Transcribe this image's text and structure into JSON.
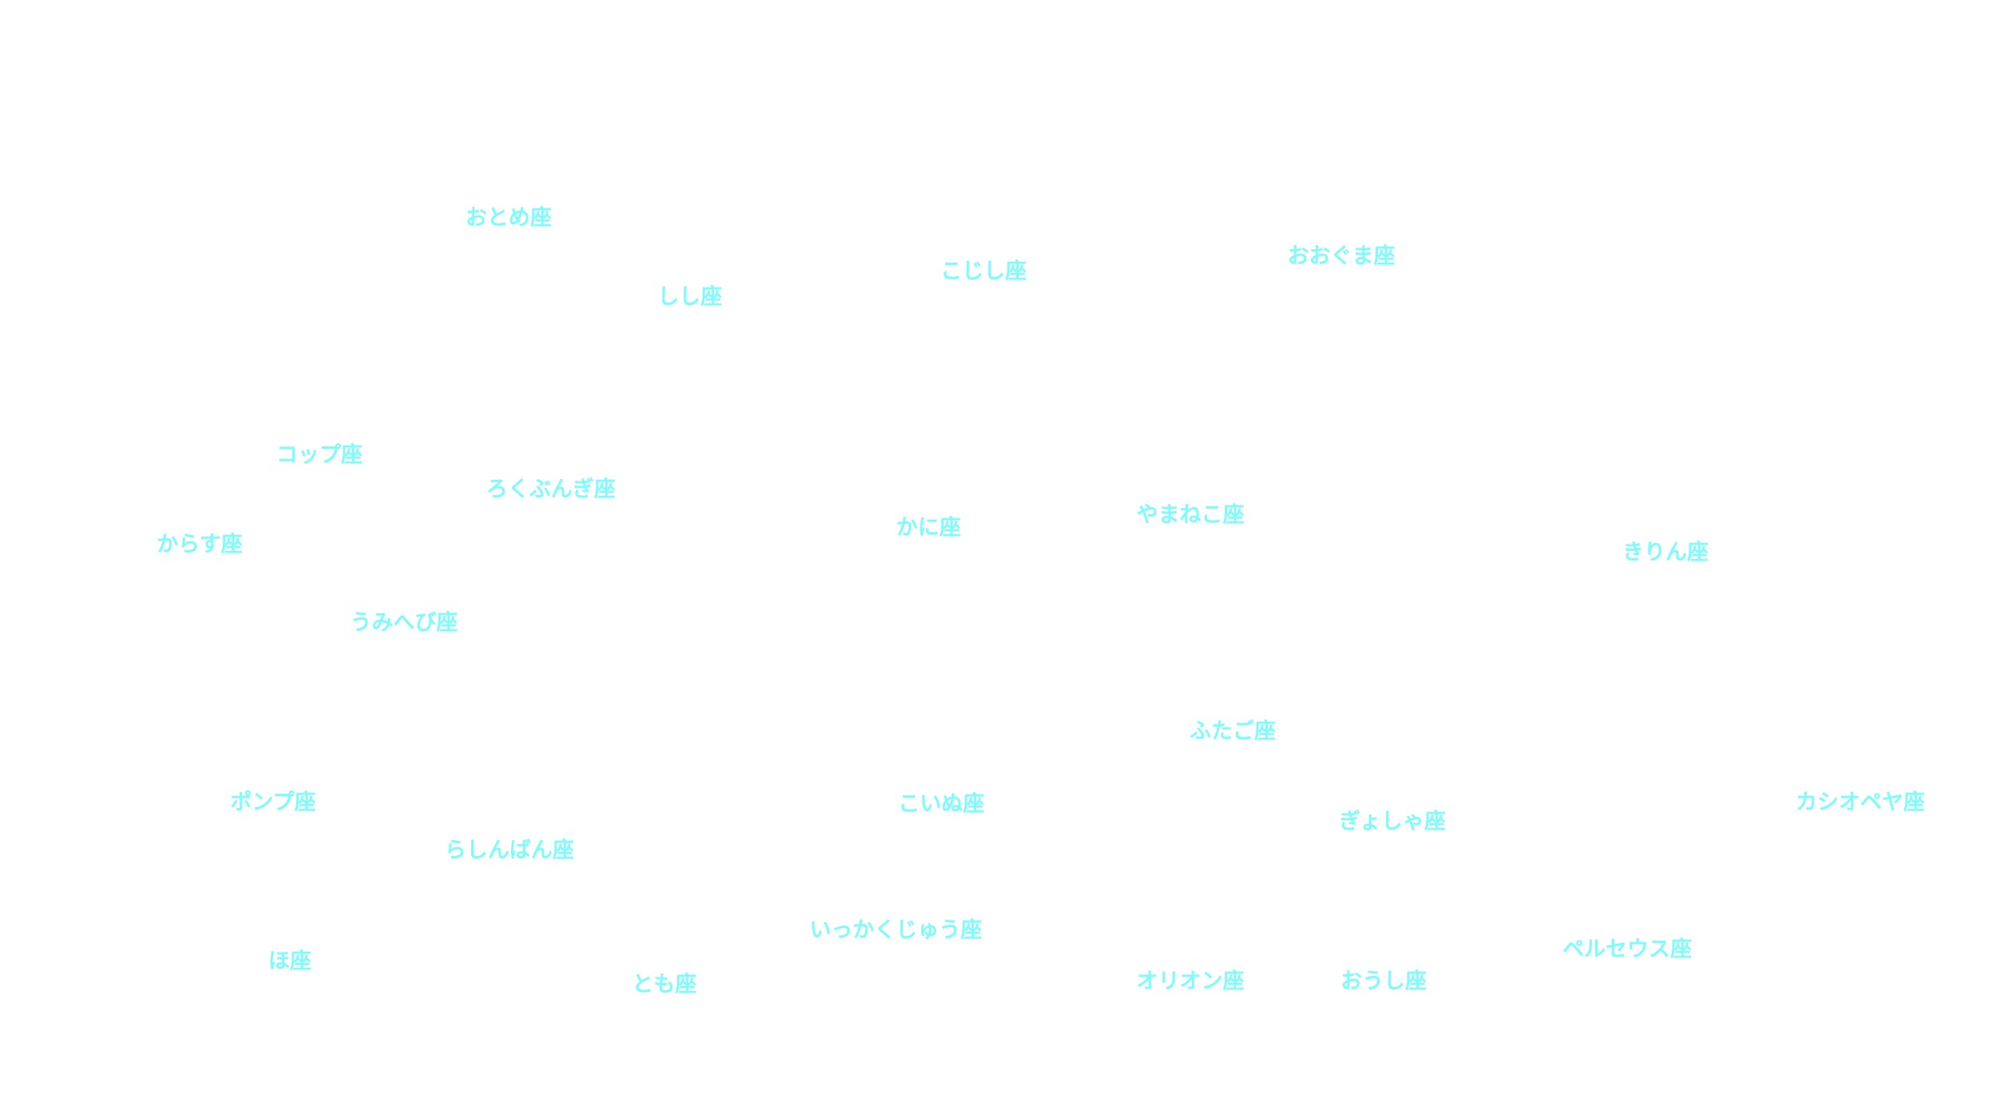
{
  "labels": [
    "おとめ座",
    "しし座",
    "こじし座",
    "おおぐま座",
    "コップ座",
    "ろくぶんぎ座",
    "からす座",
    "かに座",
    "やまねこ座",
    "きりん座",
    "うみへび座",
    "ふたご座",
    "ポンプ座",
    "こいぬ座",
    "ぎょしゃ座",
    "カシオペヤ座",
    "らしんばん座",
    "いっかくじゅう座",
    "ペルセウス座",
    "ほ座",
    "とも座",
    "オリオン座",
    "おうし座"
  ]
}
